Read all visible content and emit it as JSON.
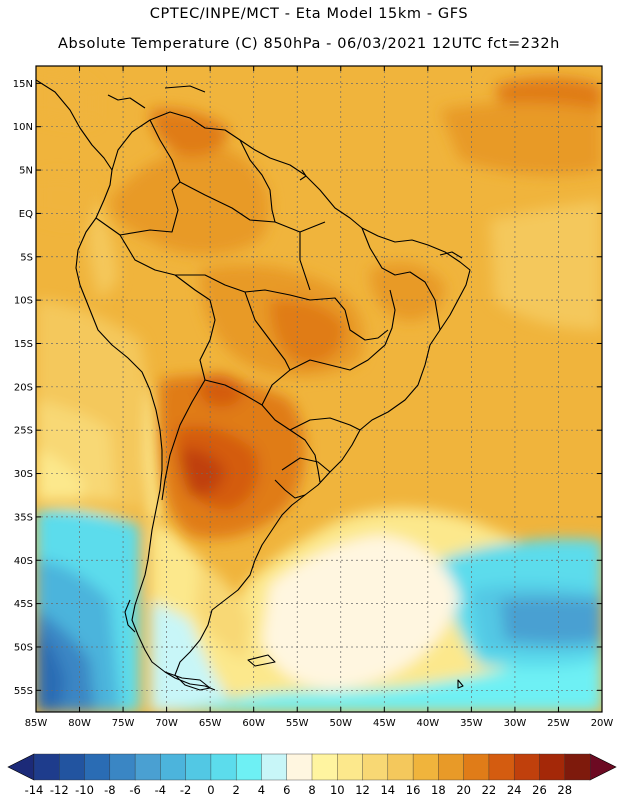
{
  "header": {
    "line1": "CPTEC/INPE/MCT -  Eta Model 15km - GFS",
    "line2": "Absolute Temperature (C) 850hPa - 06/03/2021 12UTC fct=232h"
  },
  "map": {
    "lat_labels": [
      "15N",
      "10N",
      "5N",
      "EQ",
      "5S",
      "10S",
      "15S",
      "20S",
      "25S",
      "30S",
      "35S",
      "40S",
      "45S",
      "50S",
      "55S"
    ],
    "lat_values": [
      15,
      10,
      5,
      0,
      -5,
      -10,
      -15,
      -20,
      -25,
      -30,
      -35,
      -40,
      -45,
      -50,
      -55
    ],
    "lon_labels": [
      "85W",
      "80W",
      "75W",
      "70W",
      "65W",
      "60W",
      "55W",
      "50W",
      "45W",
      "40W",
      "35W",
      "30W",
      "25W",
      "20W"
    ],
    "lon_values": [
      -85,
      -80,
      -75,
      -70,
      -65,
      -60,
      -55,
      -50,
      -45,
      -40,
      -35,
      -30,
      -25,
      -20
    ],
    "lon_range": [
      -85,
      -20
    ],
    "lat_range": [
      17,
      -57.5
    ]
  },
  "colorbar": {
    "labels": [
      "-14",
      "-12",
      "-10",
      "-8",
      "-6",
      "-4",
      "-2",
      "0",
      "2",
      "4",
      "6",
      "8",
      "10",
      "12",
      "14",
      "16",
      "18",
      "20",
      "22",
      "24",
      "26",
      "28"
    ],
    "colors": [
      "#1e3c8c",
      "#2254a0",
      "#2a6cb4",
      "#3a86c4",
      "#4aa0d2",
      "#4cb4dc",
      "#52c8e4",
      "#5cdcec",
      "#6ef0f4",
      "#c8f6f8",
      "#fff6e0",
      "#fff4a0",
      "#fce88c",
      "#f8d874",
      "#f4c85c",
      "#f0b43c",
      "#e89a28",
      "#e07c18",
      "#d45c10",
      "#c0400c",
      "#a42808",
      "#7e1a0c"
    ],
    "low_arrow_color": "#1c2a78",
    "high_arrow_color": "#6c0a22"
  }
}
